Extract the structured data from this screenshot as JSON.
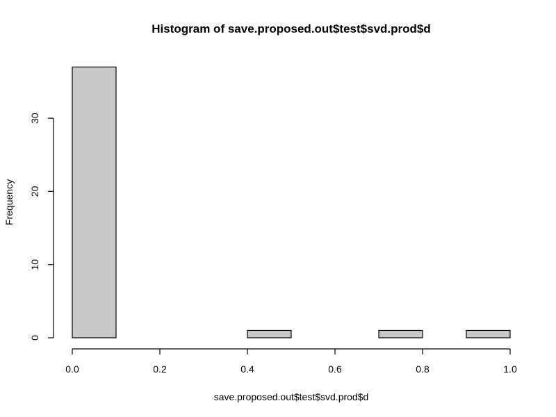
{
  "chart_data": {
    "type": "bar",
    "title": "Histogram of save.proposed.out$test$svd.prod$d",
    "xlabel": "save.proposed.out$test$svd.prod$d",
    "ylabel": "Frequency",
    "bins": [
      {
        "x0": 0.0,
        "x1": 0.1,
        "count": 37
      },
      {
        "x0": 0.1,
        "x1": 0.2,
        "count": 0
      },
      {
        "x0": 0.2,
        "x1": 0.3,
        "count": 0
      },
      {
        "x0": 0.3,
        "x1": 0.4,
        "count": 0
      },
      {
        "x0": 0.4,
        "x1": 0.5,
        "count": 1
      },
      {
        "x0": 0.5,
        "x1": 0.6,
        "count": 0
      },
      {
        "x0": 0.6,
        "x1": 0.7,
        "count": 0
      },
      {
        "x0": 0.7,
        "x1": 0.8,
        "count": 1
      },
      {
        "x0": 0.8,
        "x1": 0.9,
        "count": 0
      },
      {
        "x0": 0.9,
        "x1": 1.0,
        "count": 1
      }
    ],
    "xlim": [
      0.0,
      1.0
    ],
    "ylim": [
      0,
      37
    ],
    "xticks": [
      0.0,
      0.2,
      0.4,
      0.6,
      0.8,
      1.0
    ],
    "xtick_labels": [
      "0.0",
      "0.2",
      "0.4",
      "0.6",
      "0.8",
      "1.0"
    ],
    "yticks": [
      0,
      10,
      20,
      30
    ],
    "ytick_labels": [
      "0",
      "10",
      "20",
      "30"
    ],
    "bar_fill": "#c8c8c8",
    "bar_stroke": "#000000",
    "grid": false,
    "legend": "none"
  }
}
